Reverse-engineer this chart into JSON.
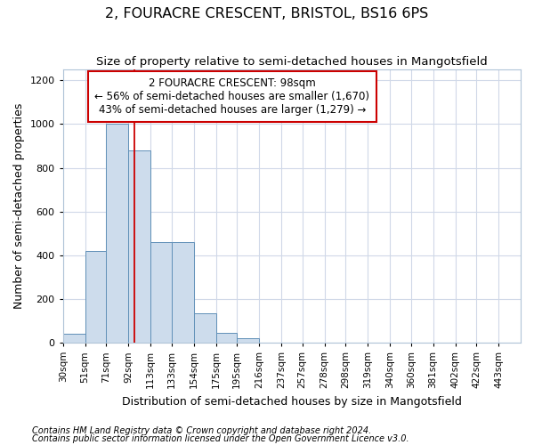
{
  "title_line1": "2, FOURACRE CRESCENT, BRISTOL, BS16 6PS",
  "title_line2": "Size of property relative to semi-detached houses in Mangotsfield",
  "xlabel": "Distribution of semi-detached houses by size in Mangotsfield",
  "ylabel": "Number of semi-detached properties",
  "footer_line1": "Contains HM Land Registry data © Crown copyright and database right 2024.",
  "footer_line2": "Contains public sector information licensed under the Open Government Licence v3.0.",
  "annotation_title": "2 FOURACRE CRESCENT: 98sqm",
  "annotation_line1": "← 56% of semi-detached houses are smaller (1,670)",
  "annotation_line2": "43% of semi-detached houses are larger (1,279) →",
  "property_size": 98,
  "bar_left_edges": [
    30,
    51,
    71,
    92,
    113,
    133,
    154,
    175,
    195,
    216,
    237,
    257,
    278,
    298,
    319,
    340,
    360,
    381,
    402,
    422
  ],
  "bar_widths": [
    21,
    20,
    21,
    21,
    20,
    21,
    21,
    20,
    21,
    21,
    21,
    21,
    20,
    21,
    21,
    20,
    21,
    21,
    20,
    21
  ],
  "bar_heights": [
    40,
    420,
    1000,
    880,
    460,
    460,
    135,
    45,
    20,
    0,
    0,
    0,
    0,
    0,
    0,
    0,
    0,
    0,
    0,
    0
  ],
  "tick_labels": [
    "30sqm",
    "51sqm",
    "71sqm",
    "92sqm",
    "113sqm",
    "133sqm",
    "154sqm",
    "175sqm",
    "195sqm",
    "216sqm",
    "237sqm",
    "257sqm",
    "278sqm",
    "298sqm",
    "319sqm",
    "340sqm",
    "360sqm",
    "381sqm",
    "402sqm",
    "422sqm",
    "443sqm"
  ],
  "bar_color": "#cddcec",
  "bar_edge_color": "#6090b8",
  "red_line_color": "#cc0000",
  "annotation_box_color": "#cc0000",
  "annotation_bg": "#ffffff",
  "grid_color": "#d0d8e8",
  "ylim": [
    0,
    1250
  ],
  "yticks": [
    0,
    200,
    400,
    600,
    800,
    1000,
    1200
  ],
  "title_fontsize": 11.5,
  "subtitle_fontsize": 9.5,
  "axis_label_fontsize": 9,
  "tick_fontsize": 7.5,
  "annotation_fontsize": 8.5,
  "footer_fontsize": 7
}
